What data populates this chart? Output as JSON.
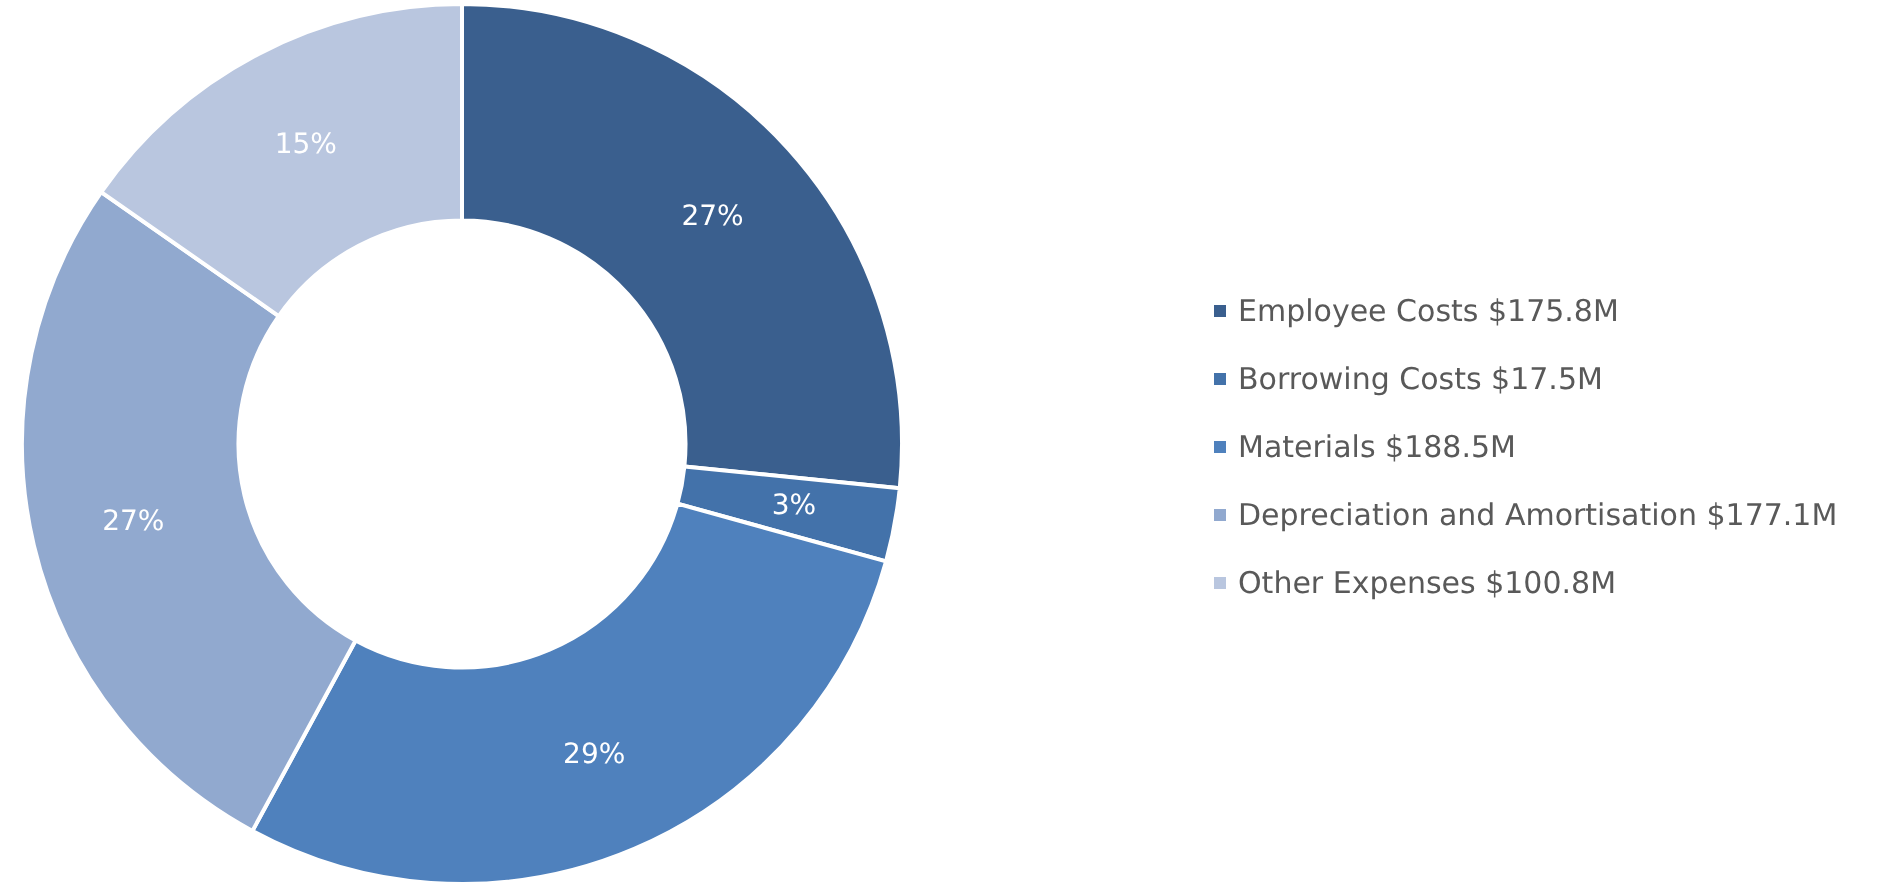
{
  "chart_data": {
    "type": "donut",
    "categories": [
      "Employee Costs $175.8M",
      "Borrowing Costs $17.5M",
      "Materials $188.5M",
      "Depreciation and Amortisation $177.1M",
      "Other Expenses $100.8M"
    ],
    "values": [
      26.6,
      2.7,
      28.6,
      26.8,
      15.3
    ],
    "value_labels": [
      "27%",
      "3%",
      "29%",
      "27%",
      "15%"
    ],
    "colors": [
      "#3a5f8e",
      "#4372aa",
      "#4f81bd",
      "#91a9cf",
      "#b9c6df"
    ],
    "legend": "right"
  }
}
